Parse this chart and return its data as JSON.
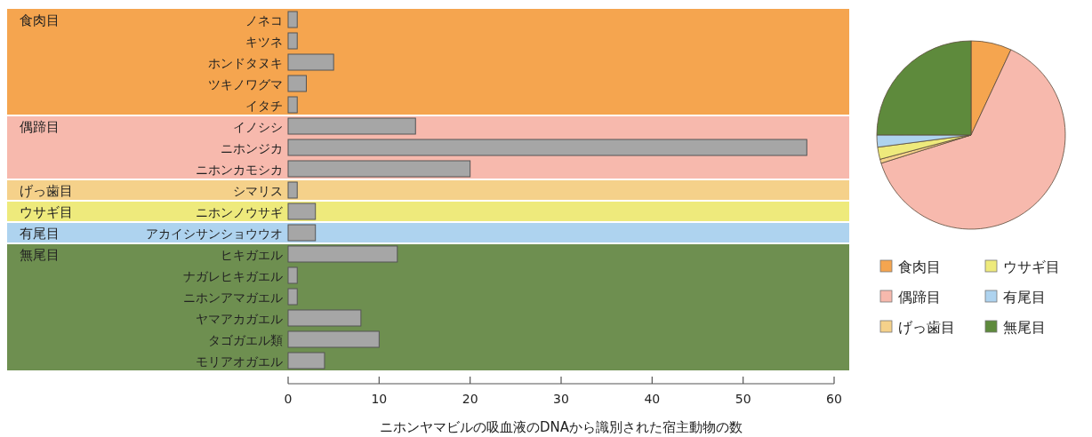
{
  "chart_data": [
    {
      "type": "bar",
      "orientation": "horizontal",
      "xlabel": "ニホンヤマビルの吸血液のDNAから識別された宿主動物の数",
      "categories": [
        "ノネコ",
        "キツネ",
        "ホンドタヌキ",
        "ツキノワグマ",
        "イタチ",
        "イノシシ",
        "ニホンジカ",
        "ニホンカモシカ",
        "シマリス",
        "ニホンノウサギ",
        "アカイシサンショウウオ",
        "ヒキガエル",
        "ナガレヒキガエル",
        "ニホンアマガエル",
        "ヤマアカガエル",
        "タゴガエル類",
        "モリアオガエル"
      ],
      "values": [
        1,
        1,
        5,
        2,
        1,
        14,
        57,
        20,
        1,
        3,
        3,
        12,
        1,
        1,
        8,
        10,
        4
      ],
      "color": "#a6a6a6",
      "xlim": [
        0,
        60
      ],
      "xticks": [
        0,
        10,
        20,
        30,
        40,
        50,
        60
      ],
      "bands": [
        {
          "axis": "y",
          "from": "ノネコ",
          "to": "イタチ",
          "label": "食肉目",
          "color": "#f5a54f"
        },
        {
          "axis": "y",
          "from": "イノシシ",
          "to": "ニホンカモシカ",
          "label": "偶蹄目",
          "color": "#f7b9ad"
        },
        {
          "axis": "y",
          "from": "シマリス",
          "to": "シマリス",
          "label": "げっ歯目",
          "color": "#f5d18a"
        },
        {
          "axis": "y",
          "from": "ニホンノウサギ",
          "to": "ニホンノウサギ",
          "label": "ウサギ目",
          "color": "#eeea7c"
        },
        {
          "axis": "y",
          "from": "アカイシサンショウウオ",
          "to": "アカイシサンショウウオ",
          "label": "有尾目",
          "color": "#aed3ef"
        },
        {
          "axis": "y",
          "from": "ヒキガエル",
          "to": "モリアオガエル",
          "label": "無尾目",
          "color": "#6e8f50"
        }
      ]
    },
    {
      "type": "pie",
      "categories": [
        "食肉目",
        "偶蹄目",
        "げっ歯目",
        "ウサギ目",
        "有尾目",
        "無尾目"
      ],
      "values": [
        6.95,
        63.2,
        0.7,
        2.08,
        2.08,
        24.99
      ],
      "colors": [
        "#f5a54f",
        "#f7b9ad",
        "#f5d18a",
        "#eeea7c",
        "#aed3ef",
        "#5e8a3c"
      ],
      "legend": "bottom"
    }
  ]
}
